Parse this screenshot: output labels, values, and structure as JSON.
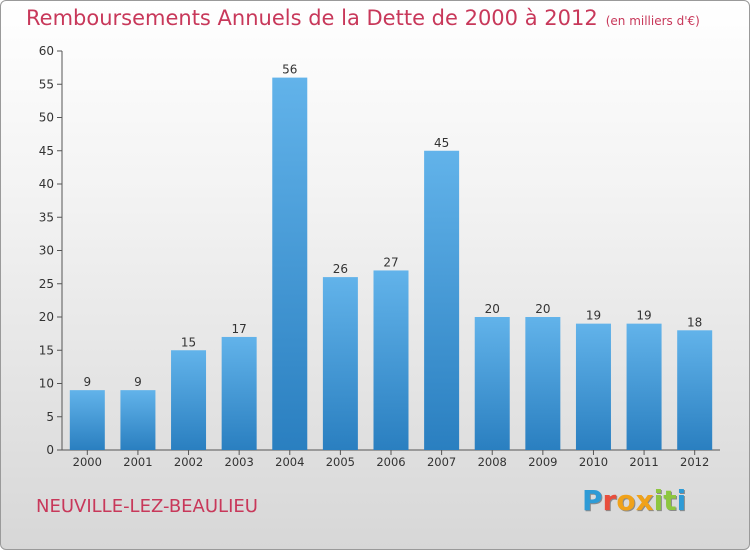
{
  "title": "Remboursements Annuels de la Dette de 2000 à 2012",
  "unit_note": "(en milliers d'€)",
  "city": "NEUVILLE-LEZ-BEAULIEU",
  "logo": {
    "letters": [
      "P",
      "r",
      "o",
      "x",
      "i",
      "t",
      "i"
    ],
    "colors": [
      "#2e9bd6",
      "#e94e3c",
      "#f0a21a",
      "#f0a21a",
      "#8dc63f",
      "#8dc63f",
      "#2e9bd6"
    ]
  },
  "colors": {
    "bar_light": "#62b3ea",
    "bar_dark": "#2a7fc0",
    "accent": "#c8385a"
  },
  "chart_data": {
    "type": "bar",
    "categories": [
      "2000",
      "2001",
      "2002",
      "2003",
      "2004",
      "2005",
      "2006",
      "2007",
      "2008",
      "2009",
      "2010",
      "2011",
      "2012"
    ],
    "values": [
      9,
      9,
      15,
      17,
      56,
      26,
      27,
      45,
      20,
      20,
      19,
      19,
      18
    ],
    "ylim": [
      0,
      60
    ],
    "yticks": [
      0,
      5,
      10,
      15,
      20,
      25,
      30,
      35,
      40,
      45,
      50,
      55,
      60
    ],
    "grid": false,
    "data_labels": true
  }
}
